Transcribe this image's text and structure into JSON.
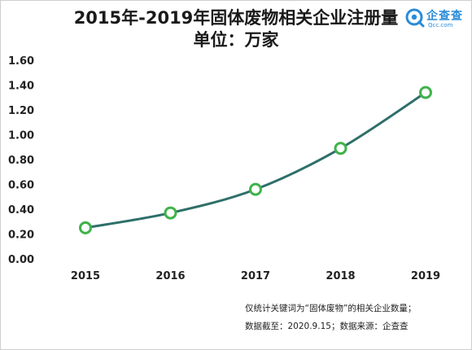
{
  "title": "2015年-2019年固体废物相关企业注册量",
  "subtitle": "单位：万家",
  "logo": {
    "name": "企查查",
    "domain": "Qcc.com",
    "icon": "qcc-logo-icon"
  },
  "notes": {
    "line1": "仅统计关键词为“固体废物”的相关企业数量；",
    "line2": "数据截至：2020.9.15；数据来源：企查查"
  },
  "colors": {
    "line": "#2e6f6a",
    "marker": "#3fb24a",
    "marker_fill": "#ffffff",
    "logo": "#2a8bd8"
  },
  "chart_data": {
    "type": "line",
    "categories": [
      "2015",
      "2016",
      "2017",
      "2018",
      "2019"
    ],
    "values": [
      0.25,
      0.37,
      0.56,
      0.89,
      1.34
    ],
    "ylim": [
      0,
      1.6
    ],
    "yticks": [
      "0.00",
      "0.20",
      "0.40",
      "0.60",
      "0.80",
      "1.00",
      "1.20",
      "1.40",
      "1.60"
    ],
    "grid": false,
    "legend": "none"
  }
}
